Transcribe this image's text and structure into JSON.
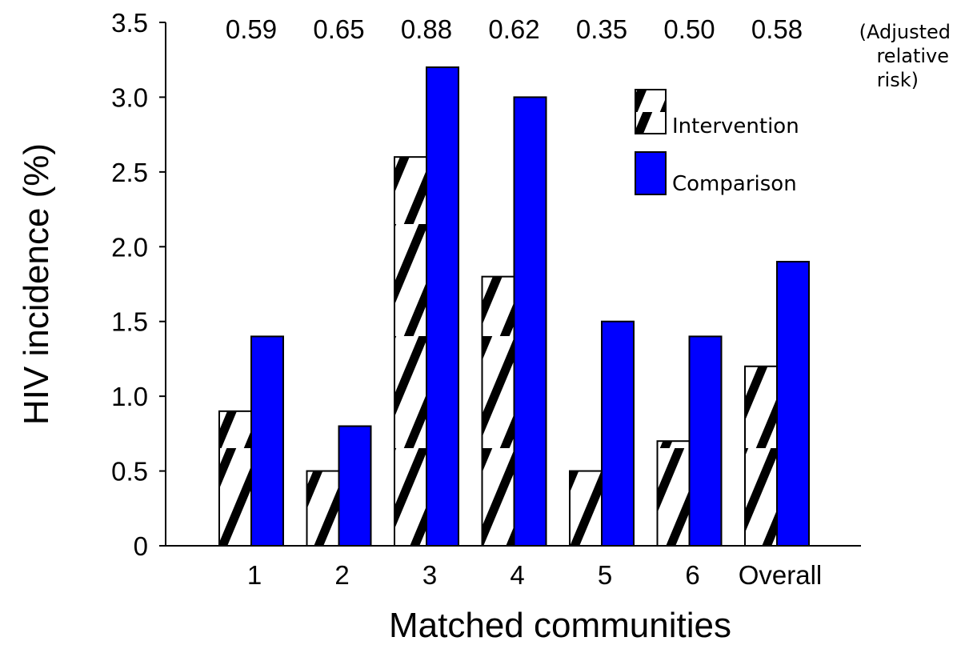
{
  "chart_data": {
    "type": "bar",
    "ylabel": "HIV incidence (%)",
    "xlabel": "Matched communities",
    "categories": [
      "1",
      "2",
      "3",
      "4",
      "5",
      "6",
      "Overall"
    ],
    "ylim": [
      0,
      3.5
    ],
    "yticks": [
      "0",
      "0.5",
      "1.0",
      "1.5",
      "2.0",
      "2.5",
      "3.0",
      "3.5"
    ],
    "series": [
      {
        "name": "Intervention",
        "values": [
          0.9,
          0.5,
          2.6,
          1.8,
          0.5,
          0.7,
          1.2
        ],
        "pattern": "hatched",
        "color": "#000000"
      },
      {
        "name": "Comparison",
        "values": [
          1.4,
          0.8,
          3.2,
          3.0,
          1.5,
          1.4,
          1.9
        ],
        "color": "#0000ff"
      }
    ],
    "annotation_values": [
      "0.59",
      "0.65",
      "0.88",
      "0.62",
      "0.35",
      "0.50",
      "0.58"
    ],
    "annotation_note_lines": [
      "(Adjusted",
      "relative",
      "risk)"
    ],
    "legend_position": "top-right",
    "grid": false
  }
}
